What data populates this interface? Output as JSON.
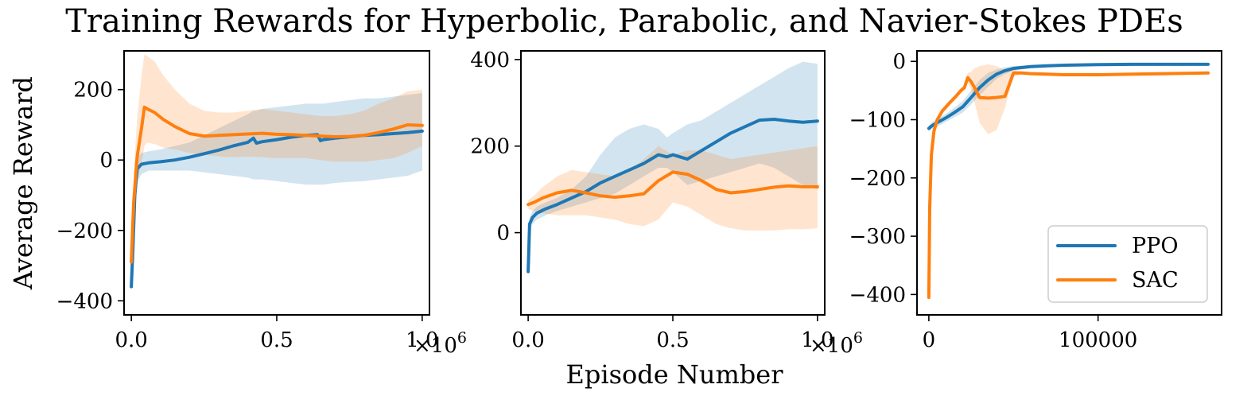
{
  "figure": {
    "title": "Training Rewards for Hyperbolic, Parabolic, and Navier-Stokes PDEs",
    "xlabel": "Episode Number",
    "ylabel": "Average Reward"
  },
  "colors": {
    "PPO": "#1f77b4",
    "SAC": "#ff7f0e"
  },
  "legend": {
    "placement": "lower-right",
    "panel": 2,
    "entries": [
      "PPO",
      "SAC"
    ]
  },
  "chart_data": [
    {
      "type": "line",
      "xlim": [
        -25000,
        1025000
      ],
      "ylim": [
        -440,
        310
      ],
      "xticks": [
        0,
        500000,
        1000000
      ],
      "xtick_labels": [
        "0.0",
        "0.5",
        "1.0"
      ],
      "x_offset_label": "×10",
      "x_offset_exponent": "6",
      "yticks": [
        -400,
        -200,
        0,
        200
      ],
      "ytick_labels": [
        "−400",
        "−200",
        "0",
        "200"
      ],
      "series": [
        {
          "name": "PPO",
          "x": [
            0,
            5000,
            12000,
            20000,
            35000,
            60000,
            100000,
            150000,
            200000,
            250000,
            300000,
            350000,
            400000,
            420000,
            430000,
            450000,
            500000,
            550000,
            600000,
            640000,
            650000,
            660000,
            700000,
            750000,
            800000,
            850000,
            900000,
            950000,
            1000000
          ],
          "y": [
            -360,
            -260,
            -100,
            -25,
            -12,
            -8,
            -5,
            0,
            8,
            18,
            28,
            40,
            50,
            62,
            48,
            52,
            58,
            65,
            70,
            72,
            55,
            58,
            62,
            66,
            70,
            72,
            75,
            78,
            82
          ],
          "band_low": [
            -360,
            -280,
            -150,
            -60,
            -40,
            -30,
            -30,
            -30,
            -30,
            -35,
            -40,
            -45,
            -50,
            -55,
            -55,
            -55,
            -60,
            -65,
            -70,
            -70,
            -70,
            -70,
            -65,
            -62,
            -60,
            -55,
            -50,
            -45,
            -30
          ],
          "band_high": [
            -340,
            -200,
            -50,
            10,
            20,
            25,
            30,
            40,
            50,
            70,
            90,
            110,
            130,
            140,
            140,
            145,
            150,
            155,
            160,
            160,
            160,
            160,
            165,
            170,
            175,
            175,
            180,
            185,
            190
          ]
        },
        {
          "name": "SAC",
          "x": [
            0,
            8000,
            20000,
            35000,
            45000,
            55000,
            80000,
            110000,
            150000,
            200000,
            250000,
            300000,
            350000,
            400000,
            450000,
            500000,
            550000,
            600000,
            650000,
            700000,
            750000,
            800000,
            850000,
            900000,
            950000,
            1000000
          ],
          "y": [
            -290,
            -120,
            10,
            90,
            150,
            145,
            135,
            115,
            95,
            75,
            68,
            70,
            72,
            74,
            76,
            73,
            72,
            70,
            68,
            66,
            67,
            70,
            78,
            88,
            100,
            98
          ],
          "band_low": [
            -300,
            -200,
            -60,
            -10,
            40,
            50,
            45,
            35,
            30,
            20,
            15,
            10,
            8,
            10,
            8,
            5,
            5,
            5,
            0,
            -5,
            -5,
            -5,
            0,
            5,
            20,
            40
          ],
          "band_high": [
            -260,
            -40,
            120,
            240,
            300,
            295,
            280,
            240,
            200,
            160,
            140,
            135,
            135,
            140,
            145,
            140,
            135,
            130,
            125,
            125,
            130,
            140,
            160,
            175,
            195,
            200
          ]
        }
      ]
    },
    {
      "type": "line",
      "xlim": [
        -25000,
        1025000
      ],
      "ylim": [
        -190,
        420
      ],
      "xticks": [
        0,
        500000,
        1000000
      ],
      "xtick_labels": [
        "0.0",
        "0.5",
        "1.0"
      ],
      "x_offset_label": "×10",
      "x_offset_exponent": "6",
      "yticks": [
        0,
        200,
        400
      ],
      "ytick_labels": [
        "0",
        "200",
        "400"
      ],
      "series": [
        {
          "name": "PPO",
          "x": [
            0,
            5000,
            15000,
            30000,
            60000,
            100000,
            150000,
            200000,
            250000,
            300000,
            350000,
            400000,
            450000,
            480000,
            500000,
            550000,
            600000,
            650000,
            700000,
            750000,
            800000,
            850000,
            900000,
            950000,
            1000000
          ],
          "y": [
            -90,
            20,
            35,
            45,
            55,
            65,
            80,
            95,
            115,
            130,
            145,
            160,
            180,
            175,
            180,
            170,
            190,
            210,
            230,
            245,
            260,
            262,
            258,
            255,
            258
          ],
          "band_low": [
            -90,
            5,
            20,
            30,
            40,
            50,
            60,
            70,
            80,
            90,
            110,
            130,
            150,
            150,
            140,
            110,
            120,
            130,
            140,
            150,
            160,
            150,
            130,
            110,
            100
          ],
          "band_high": [
            -90,
            35,
            50,
            60,
            70,
            80,
            100,
            130,
            180,
            220,
            240,
            250,
            240,
            220,
            230,
            250,
            260,
            280,
            300,
            320,
            340,
            360,
            380,
            395,
            390
          ]
        },
        {
          "name": "SAC",
          "x": [
            0,
            20000,
            50000,
            100000,
            150000,
            200000,
            250000,
            300000,
            350000,
            400000,
            450000,
            500000,
            550000,
            600000,
            650000,
            700000,
            750000,
            800000,
            850000,
            900000,
            950000,
            1000000
          ],
          "y": [
            65,
            70,
            80,
            92,
            98,
            92,
            85,
            82,
            85,
            90,
            120,
            140,
            135,
            120,
            100,
            92,
            95,
            100,
            105,
            108,
            106,
            106
          ],
          "band_low": [
            55,
            50,
            45,
            40,
            40,
            40,
            35,
            30,
            20,
            15,
            30,
            70,
            60,
            40,
            20,
            10,
            5,
            5,
            5,
            8,
            8,
            10
          ],
          "band_high": [
            75,
            85,
            105,
            130,
            145,
            140,
            135,
            130,
            145,
            170,
            200,
            180,
            190,
            190,
            180,
            170,
            175,
            180,
            185,
            190,
            195,
            200
          ]
        }
      ]
    },
    {
      "type": "line",
      "xlim": [
        -7000,
        173000
      ],
      "ylim": [
        -435,
        18
      ],
      "xticks": [
        0,
        100000
      ],
      "xtick_labels": [
        "0",
        "100000"
      ],
      "yticks": [
        -400,
        -300,
        -200,
        -100,
        0
      ],
      "ytick_labels": [
        "−400",
        "−300",
        "−200",
        "−100",
        "0"
      ],
      "series": [
        {
          "name": "PPO",
          "x": [
            0,
            2000,
            5000,
            10000,
            15000,
            20000,
            25000,
            30000,
            35000,
            40000,
            45000,
            50000,
            60000,
            70000,
            80000,
            90000,
            100000,
            120000,
            140000,
            160000,
            165000
          ],
          "y": [
            -115,
            -110,
            -105,
            -97,
            -88,
            -78,
            -62,
            -45,
            -32,
            -22,
            -16,
            -12,
            -9,
            -7.5,
            -6.5,
            -6,
            -5.5,
            -5,
            -5,
            -5,
            -5
          ],
          "band_low": [
            -120,
            -116,
            -112,
            -104,
            -96,
            -88,
            -74,
            -58,
            -44,
            -30,
            -22,
            -16,
            -12,
            -10,
            -8,
            -7,
            -6.5,
            -6,
            -6,
            -6,
            -6
          ],
          "band_high": [
            -110,
            -104,
            -98,
            -90,
            -80,
            -68,
            -50,
            -32,
            -20,
            -14,
            -10,
            -8,
            -7,
            -5.5,
            -5,
            -5,
            -4.5,
            -4,
            -4,
            -4,
            -4
          ]
        },
        {
          "name": "SAC",
          "x": [
            0,
            500,
            1500,
            3000,
            5000,
            8000,
            12000,
            16000,
            19000,
            21000,
            23000,
            25000,
            27000,
            30000,
            35000,
            40000,
            45000,
            50000,
            55000,
            60000,
            70000,
            80000,
            100000,
            120000,
            140000,
            165000
          ],
          "y": [
            -405,
            -250,
            -160,
            -120,
            -100,
            -85,
            -72,
            -60,
            -50,
            -45,
            -28,
            -35,
            -45,
            -62,
            -63,
            -62,
            -60,
            -20,
            -20,
            -21,
            -22,
            -23,
            -23,
            -22,
            -21,
            -20
          ],
          "band_low": [
            -405,
            -255,
            -165,
            -125,
            -104,
            -88,
            -76,
            -64,
            -54,
            -49,
            -36,
            -48,
            -70,
            -105,
            -125,
            -118,
            -80,
            -26,
            -22,
            -22,
            -23,
            -24,
            -24,
            -23,
            -22,
            -21
          ],
          "band_high": [
            -405,
            -245,
            -155,
            -115,
            -96,
            -82,
            -68,
            -56,
            -46,
            -41,
            -20,
            -18,
            -12,
            -8,
            -5,
            -8,
            -15,
            -14,
            -18,
            -20,
            -21,
            -22,
            -22,
            -21,
            -20,
            -19
          ]
        }
      ]
    }
  ]
}
